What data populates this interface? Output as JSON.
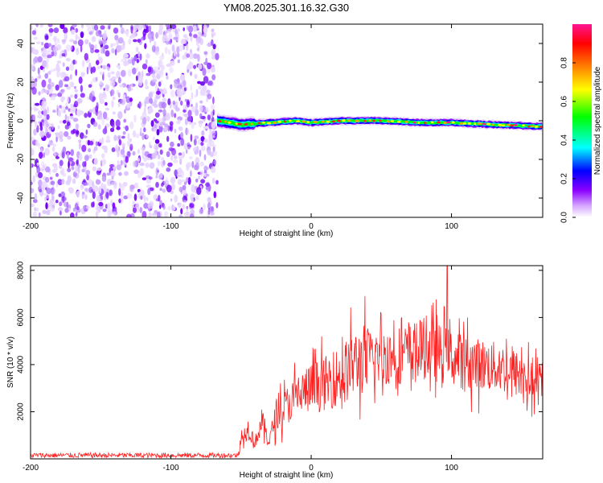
{
  "title": "YM08.2025.301.16.32.G30",
  "chart_data": [
    {
      "type": "heatmap",
      "title": "YM08.2025.301.16.32.G30",
      "xlabel": "Height of straight line (km)",
      "ylabel": "Frequency (Hz)",
      "xlim": [
        -200,
        165
      ],
      "ylim": [
        -50,
        50
      ],
      "xticks": [
        -200,
        -100,
        0,
        100
      ],
      "yticks": [
        -40,
        -20,
        0,
        20,
        40
      ],
      "noise_region_km": [
        -200,
        -67
      ],
      "signal": {
        "start_km": -67,
        "end_km": 165,
        "center_freq_hz": [
          [
            -67,
            0
          ],
          [
            -50,
            -2
          ],
          [
            -30,
            -1
          ],
          [
            -10,
            0
          ],
          [
            0,
            -1
          ],
          [
            20,
            0
          ],
          [
            50,
            0
          ],
          [
            80,
            -1
          ],
          [
            100,
            -1
          ],
          [
            130,
            -2
          ],
          [
            165,
            -3
          ]
        ],
        "peak_normalized_amplitude": 0.95
      },
      "colorbar": {
        "label": "Normalized spectral amplitude",
        "range": [
          0,
          1
        ],
        "ticks": [
          "0.0",
          "0.2",
          "0.4",
          "0.6",
          "0.8"
        ],
        "colormap": [
          "#ffffff",
          "#8b00ff",
          "#0000ff",
          "#00ffff",
          "#00ff00",
          "#ffff00",
          "#ff8000",
          "#ff0000",
          "#ff0080"
        ]
      }
    },
    {
      "type": "line",
      "xlabel": "Height of straight line (km)",
      "ylabel": "SNR (10 * v/v)",
      "xlim": [
        -200,
        165
      ],
      "ylim": [
        0,
        8200
      ],
      "xticks": [
        -200,
        -100,
        0,
        100
      ],
      "yticks": [
        2000,
        4000,
        6000,
        8000
      ],
      "color": "#ff2020",
      "series": [
        {
          "name": "SNR",
          "baseline_segment": {
            "x_range": [
              -200,
              -52
            ],
            "mean": 150
          },
          "trend": [
            [
              -52,
              150
            ],
            [
              -50,
              800
            ],
            [
              -45,
              1300
            ],
            [
              -40,
              700
            ],
            [
              -35,
              1600
            ],
            [
              -30,
              700
            ],
            [
              -25,
              1900
            ],
            [
              -20,
              2100
            ],
            [
              -10,
              2700
            ],
            [
              0,
              3000
            ],
            [
              10,
              3200
            ],
            [
              20,
              3500
            ],
            [
              30,
              4000
            ],
            [
              40,
              4300
            ],
            [
              50,
              4300
            ],
            [
              60,
              4400
            ],
            [
              70,
              4500
            ],
            [
              80,
              4700
            ],
            [
              90,
              4500
            ],
            [
              100,
              4300
            ],
            [
              110,
              4100
            ],
            [
              120,
              4000
            ],
            [
              130,
              3900
            ],
            [
              140,
              3800
            ],
            [
              150,
              3500
            ],
            [
              165,
              3000
            ]
          ],
          "peak": {
            "x": 97,
            "y": 8200
          }
        }
      ]
    }
  ]
}
